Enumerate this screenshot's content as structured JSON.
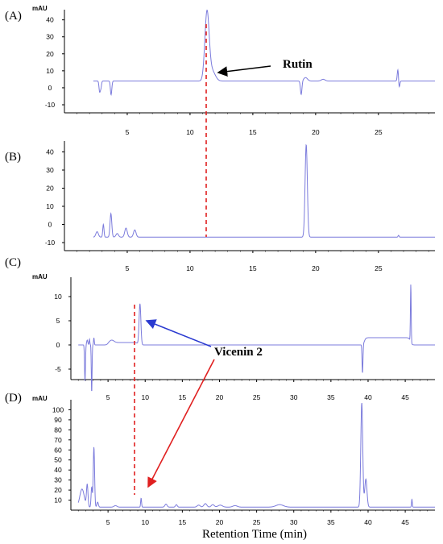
{
  "colors": {
    "trace": "#7b7bdc",
    "axis": "#000000",
    "guide": "#e02020",
    "arrow_black": "#000000",
    "arrow_blue": "#2a3ad0",
    "arrow_red": "#e02020"
  },
  "x_axis_title": "Retention Time (min)",
  "chart_data": [
    {
      "type": "line",
      "panel_label": "(A)",
      "ylabel": "mAU",
      "xlim": [
        0,
        29.5
      ],
      "ylim": [
        -10,
        46
      ],
      "x_ticks": [
        5,
        10,
        15,
        20,
        25
      ],
      "y_ticks": [
        -10,
        0,
        10,
        20,
        30,
        40
      ],
      "baseline": 4,
      "peaks": [
        {
          "x": 2.8,
          "h": -6.0,
          "w": 0.05
        },
        {
          "x": 2.9,
          "h": -4.0,
          "w": 0.05
        },
        {
          "x": 3.7,
          "h": -6.0,
          "w": 0.05
        },
        {
          "x": 3.75,
          "h": -3.0,
          "w": 0.05
        },
        {
          "x": 11.35,
          "h": 40.0,
          "w": 0.17
        },
        {
          "x": 11.75,
          "h": 6.0,
          "w": 0.25
        },
        {
          "x": 18.85,
          "h": -8.0,
          "w": 0.06
        },
        {
          "x": 19.2,
          "h": 2.0,
          "w": 0.15
        },
        {
          "x": 20.6,
          "h": 1.0,
          "w": 0.15
        },
        {
          "x": 26.55,
          "h": 7.0,
          "w": 0.05
        },
        {
          "x": 26.65,
          "h": -4.0,
          "w": 0.05
        }
      ],
      "annotation": "Rutin"
    },
    {
      "type": "line",
      "panel_label": "(B)",
      "ylabel": "",
      "xlim": [
        0,
        29.5
      ],
      "ylim": [
        -10,
        46
      ],
      "x_ticks": [
        5,
        10,
        15,
        20,
        25
      ],
      "y_ticks": [
        -10,
        0,
        10,
        20,
        30,
        40
      ],
      "baseline": -7,
      "peaks": [
        {
          "x": 2.6,
          "h": 3.0,
          "w": 0.1
        },
        {
          "x": 3.1,
          "h": 7.0,
          "w": 0.05
        },
        {
          "x": 3.7,
          "h": 13.0,
          "w": 0.07
        },
        {
          "x": 4.2,
          "h": 2.0,
          "w": 0.1
        },
        {
          "x": 4.9,
          "h": 5.0,
          "w": 0.1
        },
        {
          "x": 5.6,
          "h": 4.0,
          "w": 0.1
        },
        {
          "x": 19.25,
          "h": 51.0,
          "w": 0.09
        },
        {
          "x": 26.6,
          "h": 1.0,
          "w": 0.04
        }
      ]
    },
    {
      "type": "line",
      "panel_label": "(C)",
      "ylabel": "mAU",
      "xlim": [
        0,
        49
      ],
      "ylim": [
        -5.5,
        14
      ],
      "x_ticks": [
        5,
        10,
        15,
        20,
        25,
        30,
        35,
        40,
        45
      ],
      "y_ticks": [
        -5,
        0,
        5,
        10
      ],
      "baseline": 0,
      "peaks": [
        {
          "x": 1.9,
          "h": -7.5,
          "w": 0.06
        },
        {
          "x": 2.2,
          "h": 1.0,
          "w": 0.08
        },
        {
          "x": 2.5,
          "h": 1.2,
          "w": 0.05
        },
        {
          "x": 2.8,
          "h": -10.0,
          "w": 0.05
        },
        {
          "x": 3.1,
          "h": 1.5,
          "w": 0.05
        },
        {
          "x": 5.5,
          "h": 0.5,
          "w": 0.3
        },
        {
          "x": 9.3,
          "h": 8.5,
          "w": 0.12
        },
        {
          "x": 39.25,
          "h": -6.0,
          "w": 0.06
        },
        {
          "x": 45.75,
          "h": 12.0,
          "w": 0.05
        }
      ],
      "steps": [
        {
          "x0": 5.0,
          "x1": 9.0,
          "dy": 0.5
        },
        {
          "x0": 39.5,
          "x1": 45.7,
          "dy": 1.5
        }
      ],
      "annotation": "Vicenin 2"
    },
    {
      "type": "line",
      "panel_label": "(D)",
      "ylabel": "mAU",
      "xlim": [
        0,
        49
      ],
      "ylim": [
        0,
        110
      ],
      "x_ticks": [
        5,
        10,
        15,
        20,
        25,
        30,
        35,
        40,
        45
      ],
      "y_ticks": [
        10,
        20,
        30,
        40,
        50,
        60,
        70,
        80,
        90,
        100
      ],
      "baseline": 3,
      "peaks": [
        {
          "x": 1.5,
          "h": 18.0,
          "w": 0.3
        },
        {
          "x": 2.2,
          "h": 22.0,
          "w": 0.1
        },
        {
          "x": 2.8,
          "h": 20.0,
          "w": 0.08
        },
        {
          "x": 3.1,
          "h": 60.0,
          "w": 0.09
        },
        {
          "x": 3.6,
          "h": 5.0,
          "w": 0.1
        },
        {
          "x": 6.0,
          "h": 1.5,
          "w": 0.2
        },
        {
          "x": 9.45,
          "h": 9.0,
          "w": 0.06
        },
        {
          "x": 12.8,
          "h": 3.0,
          "w": 0.15
        },
        {
          "x": 14.2,
          "h": 2.5,
          "w": 0.12
        },
        {
          "x": 17.2,
          "h": 2.0,
          "w": 0.2
        },
        {
          "x": 18.1,
          "h": 3.5,
          "w": 0.2
        },
        {
          "x": 19.1,
          "h": 2.5,
          "w": 0.2
        },
        {
          "x": 20.1,
          "h": 2.0,
          "w": 0.3
        },
        {
          "x": 22.1,
          "h": 1.5,
          "w": 0.3
        },
        {
          "x": 28.1,
          "h": 2.5,
          "w": 0.5
        },
        {
          "x": 39.15,
          "h": 104.0,
          "w": 0.13
        },
        {
          "x": 39.7,
          "h": 28.0,
          "w": 0.15
        },
        {
          "x": 45.9,
          "h": 8.0,
          "w": 0.05
        }
      ]
    }
  ]
}
